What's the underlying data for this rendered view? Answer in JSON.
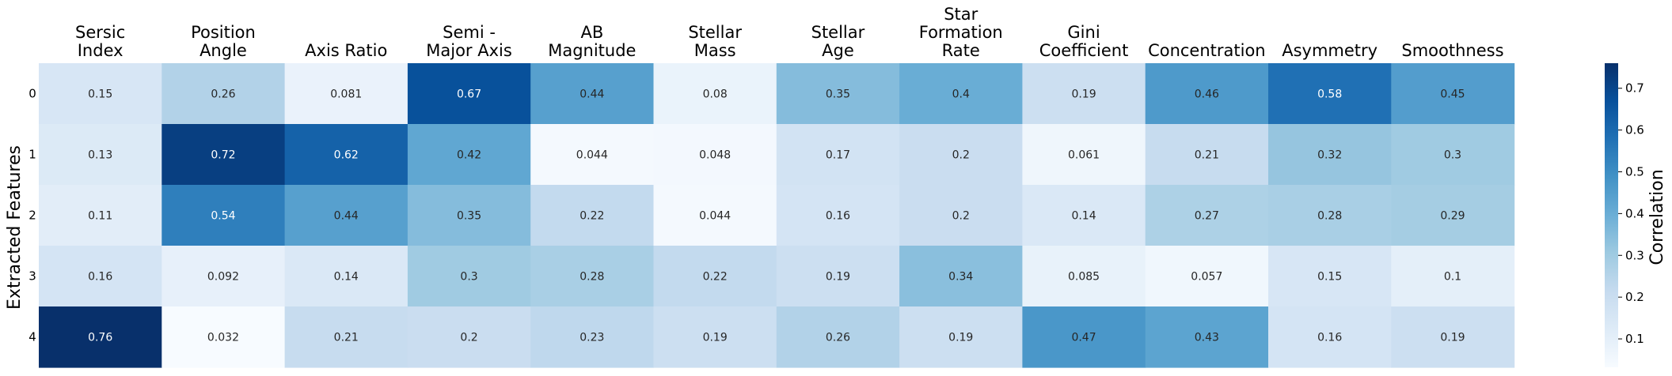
{
  "chart_data": {
    "type": "heatmap",
    "title": "",
    "xlabel": "",
    "ylabel": "Extracted Features",
    "columns": [
      [
        "Sersic",
        "Index"
      ],
      [
        "Position",
        "Angle"
      ],
      [
        "Axis Ratio"
      ],
      [
        "Semi -",
        "Major Axis"
      ],
      [
        "AB",
        "Magnitude"
      ],
      [
        "Stellar",
        "Mass"
      ],
      [
        "Stellar",
        "Age"
      ],
      [
        "Star",
        "Formation",
        "Rate"
      ],
      [
        "Gini",
        "Coefficient"
      ],
      [
        "Concentration"
      ],
      [
        "Asymmetry"
      ],
      [
        "Smoothness"
      ]
    ],
    "rows": [
      "0",
      "1",
      "2",
      "3",
      "4"
    ],
    "values": [
      [
        "0.15",
        "0.26",
        "0.081",
        "0.67",
        "0.44",
        "0.08",
        "0.35",
        "0.4",
        "0.19",
        "0.46",
        "0.58",
        "0.45"
      ],
      [
        "0.13",
        "0.72",
        "0.62",
        "0.42",
        "0.044",
        "0.048",
        "0.17",
        "0.2",
        "0.061",
        "0.21",
        "0.32",
        "0.3"
      ],
      [
        "0.11",
        "0.54",
        "0.44",
        "0.35",
        "0.22",
        "0.044",
        "0.16",
        "0.2",
        "0.14",
        "0.27",
        "0.28",
        "0.29"
      ],
      [
        "0.16",
        "0.092",
        "0.14",
        "0.3",
        "0.28",
        "0.22",
        "0.19",
        "0.34",
        "0.085",
        "0.057",
        "0.15",
        "0.1"
      ],
      [
        "0.76",
        "0.032",
        "0.21",
        "0.2",
        "0.23",
        "0.19",
        "0.26",
        "0.19",
        "0.47",
        "0.43",
        "0.16",
        "0.19"
      ]
    ],
    "colorbar": {
      "label": "Correlation",
      "vmin": 0.032,
      "vmax": 0.76,
      "ticks": [
        "0.1",
        "0.2",
        "0.3",
        "0.4",
        "0.5",
        "0.6",
        "0.7"
      ],
      "colormap": "Blues",
      "colors": [
        "#f7fbff",
        "#deebf7",
        "#c6dbef",
        "#9ecae1",
        "#6baed6",
        "#4292c6",
        "#2171b5",
        "#08519c",
        "#08306b"
      ]
    }
  }
}
